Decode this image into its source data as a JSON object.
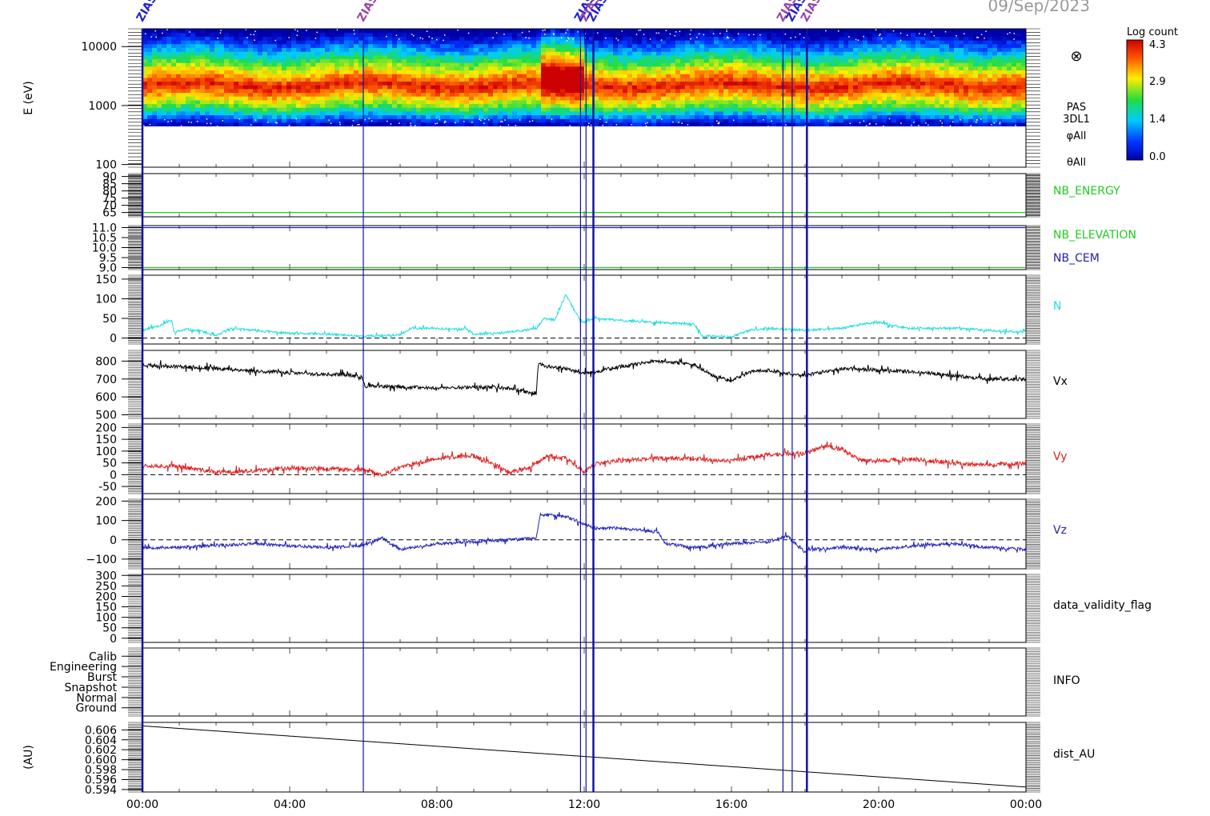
{
  "header": {
    "date": "09/Sep/2023"
  },
  "colorbar": {
    "title": "Log count",
    "ticks": [
      "4.3",
      "2.9",
      "1.4",
      "0.0"
    ]
  },
  "spectrogram_labels": {
    "symbol": "⊗",
    "instrument": "PAS",
    "mode": "3DL1",
    "phi": "φAll",
    "theta": "θAll"
  },
  "event_marker_text": "ZIAS",
  "chart_data": {
    "type": "line",
    "x_axis": {
      "range_hours": [
        0,
        24
      ],
      "tick_labels": [
        "00:00",
        "04:00",
        "08:00",
        "12:00",
        "16:00",
        "20:00",
        "00:00"
      ],
      "tick_hours": [
        0,
        4,
        8,
        12,
        16,
        20,
        24
      ]
    },
    "event_markers_hours": [
      0.0,
      6.0,
      11.9,
      12.05,
      12.25,
      17.4,
      17.65,
      18.05
    ],
    "panels": [
      {
        "id": "spectrogram",
        "type": "heatmap",
        "ylabel": "E (eV)",
        "yscale": "log",
        "yticks": [
          "10000",
          "1000",
          "100"
        ],
        "ytick_values": [
          10000,
          1000,
          100
        ],
        "ylim": [
          90,
          20000
        ],
        "color_range": [
          0.0,
          4.3
        ]
      },
      {
        "id": "nb_energy",
        "label": "NB_ENERGY",
        "label_color": "#22cc22",
        "yticks": [
          "90",
          "85",
          "80",
          "75",
          "70",
          "65"
        ],
        "ytick_values": [
          90,
          85,
          80,
          75,
          70,
          65
        ],
        "ylim": [
          62,
          92
        ],
        "const_value": 65,
        "line_color": "#22cc22"
      },
      {
        "id": "nb_elev_cem",
        "labels": [
          "NB_ELEVATION",
          "NB_CEM"
        ],
        "label_colors": [
          "#22cc22",
          "#2222aa"
        ],
        "yticks": [
          "11.0",
          "10.5",
          "10.0",
          "9.5",
          "9.0"
        ],
        "ytick_values": [
          11.0,
          10.5,
          10.0,
          9.5,
          9.0
        ],
        "ylim": [
          8.9,
          11.1
        ],
        "lines": [
          {
            "value": 9.0,
            "color": "#22cc22"
          },
          {
            "value": 11.0,
            "color": "#2222aa"
          }
        ]
      },
      {
        "id": "n",
        "label": "N",
        "label_color": "#22dddd",
        "line_color": "#22dddd",
        "yticks": [
          "150",
          "100",
          "50",
          "0"
        ],
        "ytick_values": [
          150,
          100,
          50,
          0
        ],
        "ylim": [
          -15,
          160
        ],
        "dashed_zero": true,
        "noise": 3,
        "seed": 11,
        "x": [
          0,
          0.4,
          0.8,
          0.85,
          1.2,
          1.6,
          2.0,
          2.4,
          3.0,
          4.0,
          5.0,
          6.0,
          7.0,
          7.3,
          8.0,
          8.8,
          9.0,
          10.0,
          10.7,
          10.9,
          11.2,
          11.5,
          11.8,
          11.95,
          12.3,
          13.0,
          14.0,
          15.0,
          15.2,
          16.0,
          16.5,
          17.0,
          18.0,
          19.0,
          19.5,
          20.0,
          20.8,
          21.0,
          22.0,
          23.0,
          24.0
        ],
        "y": [
          20,
          30,
          45,
          15,
          22,
          18,
          5,
          25,
          20,
          12,
          10,
          5,
          8,
          25,
          25,
          22,
          10,
          15,
          25,
          50,
          45,
          110,
          60,
          40,
          50,
          45,
          40,
          35,
          5,
          3,
          20,
          25,
          20,
          25,
          35,
          40,
          25,
          25,
          25,
          20,
          15
        ]
      },
      {
        "id": "vx",
        "label": "Vx",
        "label_color": "#000000",
        "line_color": "#000000",
        "yticks": [
          "800",
          "700",
          "600",
          "500"
        ],
        "ytick_values": [
          800,
          700,
          600,
          500
        ],
        "ylim": [
          480,
          860
        ],
        "noise": 10,
        "seed": 23,
        "x": [
          0,
          1,
          2,
          3,
          4,
          5,
          5.5,
          5.95,
          6.05,
          7,
          8,
          9,
          10,
          10.7,
          10.75,
          11,
          11.5,
          11.9,
          12.3,
          13,
          14,
          15,
          15.5,
          16,
          16.5,
          17,
          17.5,
          18,
          18.5,
          19,
          20,
          21,
          22,
          23,
          24
        ],
        "y": [
          780,
          770,
          760,
          745,
          735,
          725,
          725,
          710,
          660,
          655,
          650,
          655,
          650,
          615,
          785,
          770,
          760,
          730,
          740,
          770,
          800,
          780,
          720,
          690,
          740,
          750,
          730,
          720,
          740,
          760,
          750,
          740,
          720,
          700,
          700
        ]
      },
      {
        "id": "vy",
        "label": "Vy",
        "label_color": "#dd2222",
        "line_color": "#dd2222",
        "yticks": [
          "200",
          "150",
          "100",
          "50",
          "0",
          "-50"
        ],
        "ytick_values": [
          200,
          150,
          100,
          50,
          0,
          -50
        ],
        "ylim": [
          -80,
          215
        ],
        "dashed_zero": true,
        "noise": 9,
        "seed": 37,
        "x": [
          0,
          1,
          2,
          3,
          4,
          5,
          6,
          6.5,
          7,
          8,
          9,
          10,
          10.5,
          11,
          11.5,
          12,
          12.3,
          13,
          14,
          15,
          15.5,
          16,
          17,
          18,
          18.5,
          19,
          19.5,
          20,
          21,
          22,
          23,
          24
        ],
        "y": [
          40,
          35,
          10,
          15,
          30,
          25,
          20,
          0,
          30,
          70,
          80,
          10,
          30,
          80,
          70,
          10,
          45,
          60,
          70,
          70,
          60,
          60,
          85,
          90,
          120,
          110,
          60,
          60,
          65,
          50,
          40,
          50
        ]
      },
      {
        "id": "vz",
        "label": "Vz",
        "label_color": "#2222bb",
        "line_color": "#2222bb",
        "yticks": [
          "200",
          "100",
          "0",
          "−100"
        ],
        "ytick_values": [
          200,
          100,
          0,
          -100
        ],
        "ylim": [
          -150,
          210
        ],
        "dashed_zero": true,
        "noise": 8,
        "seed": 53,
        "x": [
          0,
          1,
          2,
          3,
          4,
          5,
          6,
          6.5,
          7,
          8,
          9,
          10,
          10.7,
          10.8,
          11.5,
          11.9,
          12.3,
          13,
          14,
          14.2,
          15,
          16,
          17,
          17.5,
          18,
          18.2,
          19,
          20,
          21,
          22,
          23,
          24
        ],
        "y": [
          -40,
          -40,
          -30,
          -20,
          -30,
          -40,
          -30,
          10,
          -50,
          -20,
          -10,
          0,
          10,
          130,
          120,
          90,
          60,
          60,
          40,
          -20,
          -40,
          -20,
          -10,
          20,
          -60,
          -50,
          -40,
          -50,
          -30,
          -20,
          -40,
          -50
        ]
      },
      {
        "id": "validity",
        "label": "data_validity_flag",
        "label_color": "#000000",
        "yticks": [
          "300",
          "250",
          "200",
          "150",
          "100",
          "50",
          "0"
        ],
        "ytick_values": [
          300,
          250,
          200,
          150,
          100,
          50,
          0
        ],
        "ylim": [
          -20,
          305
        ]
      },
      {
        "id": "info",
        "label": "INFO",
        "label_color": "#000000",
        "yticks": [
          "Calib",
          "Engineering",
          "Burst",
          "Snapshot",
          "Normal",
          "Ground"
        ],
        "ytick_values": [
          6,
          5,
          4,
          3,
          2,
          1
        ],
        "ylim": [
          0.2,
          6.8
        ]
      },
      {
        "id": "dist",
        "label": "dist_AU",
        "label_color": "#000000",
        "ylabel": "(AU)",
        "line_color": "#000000",
        "yticks": [
          "0.606",
          "0.604",
          "0.602",
          "0.600",
          "0.598",
          "0.596",
          "0.594"
        ],
        "ytick_values": [
          0.606,
          0.604,
          0.602,
          0.6,
          0.598,
          0.596,
          0.594
        ],
        "ylim": [
          0.5935,
          0.6075
        ],
        "noise": 0,
        "seed": 1,
        "x": [
          0,
          24
        ],
        "y": [
          0.6068,
          0.5945
        ]
      }
    ]
  }
}
